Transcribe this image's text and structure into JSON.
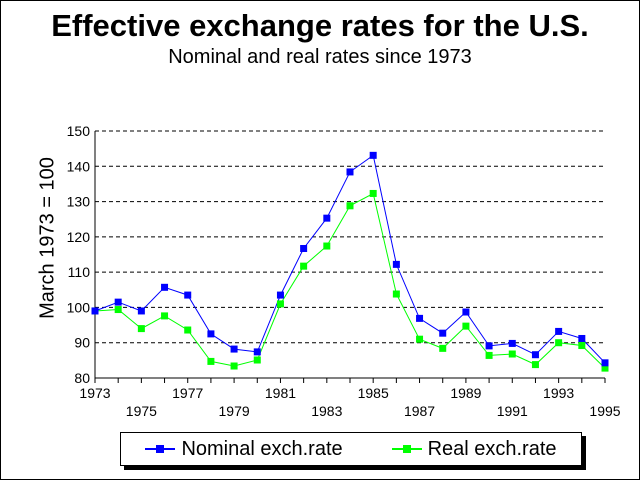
{
  "title": "Effective exchange rates for the U.S.",
  "subtitle": "Nominal and real rates since 1973",
  "chart_data": {
    "type": "line",
    "title": "Effective exchange rates for the U.S.",
    "subtitle": "Nominal and real rates since 1973",
    "ylabel": "March 1973 = 100",
    "xlabel": "",
    "ylim": [
      80,
      150
    ],
    "yticks": [
      80,
      90,
      100,
      110,
      120,
      130,
      140,
      150
    ],
    "xlim": [
      1973,
      1995
    ],
    "xticks_upper": [
      "1973",
      "1977",
      "1981",
      "1985",
      "1989",
      "1993"
    ],
    "xticks_lower": [
      "1975",
      "1979",
      "1983",
      "1987",
      "1991",
      "1995"
    ],
    "grid": "horizontal dashed",
    "legend": "bottom",
    "x": [
      1973,
      1974,
      1975,
      1976,
      1977,
      1978,
      1979,
      1980,
      1981,
      1982,
      1983,
      1984,
      1985,
      1986,
      1987,
      1988,
      1989,
      1990,
      1991,
      1992,
      1993,
      1994,
      1995
    ],
    "series": [
      {
        "name": "Nominal exch.rate",
        "color": "#0000ff",
        "values": [
          99,
          101.5,
          99,
          105.7,
          103.5,
          92.5,
          88.2,
          87.4,
          103.5,
          116.7,
          125.3,
          138.4,
          143.1,
          112.2,
          96.9,
          92.7,
          98.7,
          89.1,
          89.8,
          86.6,
          93.2,
          91.2,
          84.3
        ]
      },
      {
        "name": "Real exch.rate",
        "color": "#00ff00",
        "values": [
          99,
          99.4,
          94,
          97.6,
          93.6,
          84.7,
          83.4,
          85.1,
          101,
          111.7,
          117.4,
          128.8,
          132.3,
          103.8,
          91,
          88.4,
          94.7,
          86.4,
          86.8,
          83.8,
          90,
          89.2,
          82.8
        ]
      }
    ]
  }
}
